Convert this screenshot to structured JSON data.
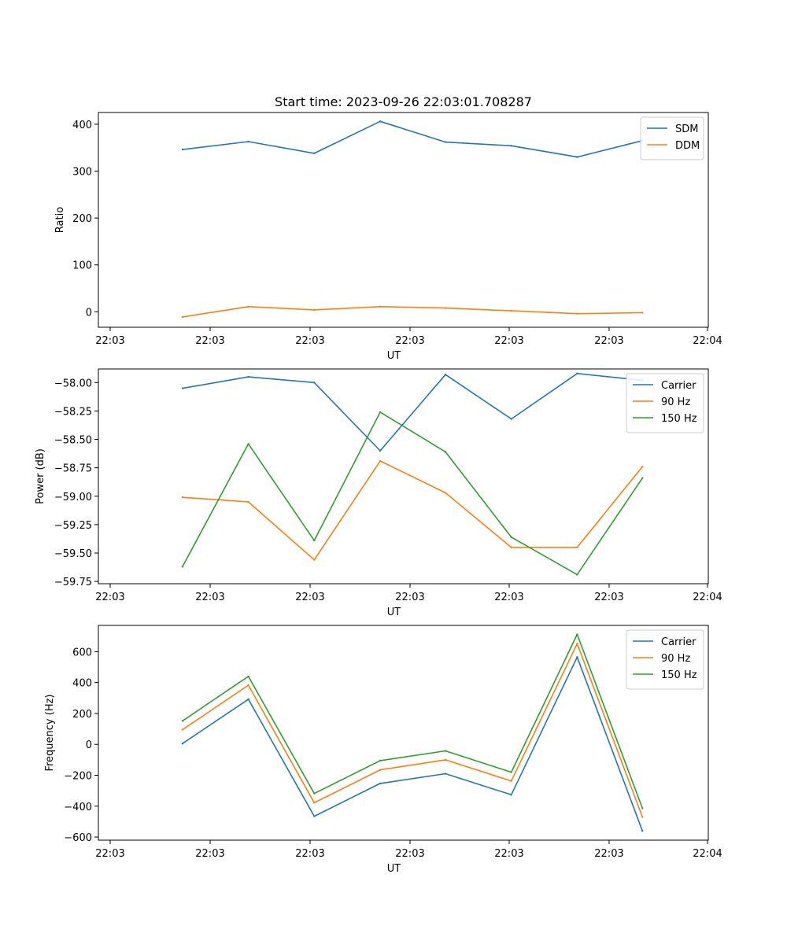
{
  "chart_data": [
    {
      "type": "line",
      "title": "Start time: 2023-09-26 22:03:01.708287",
      "xlabel": "UT",
      "ylabel": "Ratio",
      "x_ticks": [
        "22:03",
        "22:03",
        "22:03",
        "22:03",
        "22:03",
        "22:03",
        "22:04"
      ],
      "xlim": [
        0,
        1
      ],
      "x": [
        0.138,
        0.246,
        0.354,
        0.462,
        0.569,
        0.677,
        0.785,
        0.892
      ],
      "ylim": [
        -33,
        425
      ],
      "y_ticks": [
        0,
        100,
        200,
        300,
        400
      ],
      "y_tick_labels": [
        "0",
        "100",
        "200",
        "300",
        "400"
      ],
      "legend_location": "top-right",
      "series": [
        {
          "name": "SDM",
          "color": "#1f77b4",
          "values": [
            346,
            363,
            338,
            406,
            362,
            354,
            330,
            365
          ]
        },
        {
          "name": "DDM",
          "color": "#ff7f0e",
          "values": [
            -11,
            11,
            4,
            11,
            8,
            2,
            -4,
            -2
          ]
        }
      ]
    },
    {
      "type": "line",
      "title": "",
      "xlabel": "UT",
      "ylabel": "Power (dB)",
      "x_ticks": [
        "22:03",
        "22:03",
        "22:03",
        "22:03",
        "22:03",
        "22:03",
        "22:04"
      ],
      "xlim": [
        0,
        1
      ],
      "x": [
        0.138,
        0.246,
        0.354,
        0.462,
        0.569,
        0.677,
        0.785,
        0.892
      ],
      "ylim": [
        -59.77,
        -57.88
      ],
      "y_ticks": [
        -58.0,
        -58.25,
        -58.5,
        -58.75,
        -59.0,
        -59.25,
        -59.5,
        -59.75
      ],
      "y_tick_labels": [
        "−58.00",
        "−58.25",
        "−58.50",
        "−58.75",
        "−59.00",
        "−59.25",
        "−59.50",
        "−59.75"
      ],
      "legend_location": "top-right",
      "series": [
        {
          "name": "Carrier",
          "color": "#1f77b4",
          "values": [
            -58.05,
            -57.95,
            -58.0,
            -58.6,
            -57.93,
            -58.32,
            -57.92,
            -57.98
          ]
        },
        {
          "name": "90 Hz",
          "color": "#ff7f0e",
          "values": [
            -59.01,
            -59.05,
            -59.56,
            -58.69,
            -58.97,
            -59.45,
            -59.45,
            -58.74
          ]
        },
        {
          "name": "150 Hz",
          "color": "#2ca02c",
          "values": [
            -59.62,
            -58.54,
            -59.39,
            -58.26,
            -58.61,
            -59.36,
            -59.69,
            -58.84
          ]
        }
      ]
    },
    {
      "type": "line",
      "title": "",
      "xlabel": "UT",
      "ylabel": "Frequency (Hz)",
      "x_ticks": [
        "22:03",
        "22:03",
        "22:03",
        "22:03",
        "22:03",
        "22:03",
        "22:04"
      ],
      "xlim": [
        0,
        1
      ],
      "x": [
        0.138,
        0.246,
        0.354,
        0.462,
        0.569,
        0.677,
        0.785,
        0.892
      ],
      "ylim": [
        -620,
        770
      ],
      "y_ticks": [
        -600,
        -400,
        -200,
        0,
        200,
        400,
        600
      ],
      "y_tick_labels": [
        "−600",
        "−400",
        "−200",
        "0",
        "200",
        "400",
        "600"
      ],
      "legend_location": "top-right",
      "series": [
        {
          "name": "Carrier",
          "color": "#1f77b4",
          "values": [
            5,
            292,
            -465,
            -253,
            -190,
            -326,
            565,
            -560
          ]
        },
        {
          "name": "90 Hz",
          "color": "#ff7f0e",
          "values": [
            95,
            383,
            -378,
            -165,
            -100,
            -237,
            652,
            -470
          ]
        },
        {
          "name": "150 Hz",
          "color": "#2ca02c",
          "values": [
            152,
            440,
            -318,
            -105,
            -42,
            -180,
            712,
            -414
          ]
        }
      ]
    }
  ]
}
